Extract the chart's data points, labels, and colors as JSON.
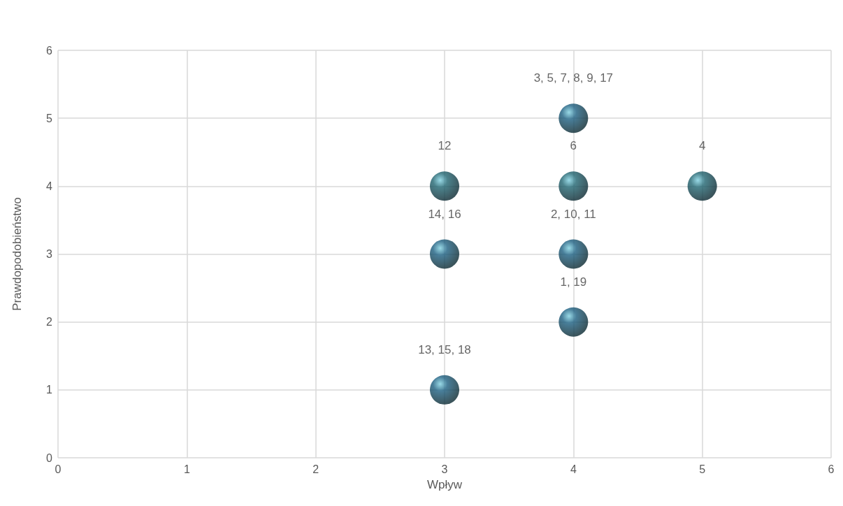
{
  "chart_data": {
    "type": "scatter",
    "xlabel": "Wpływ",
    "ylabel": "Prawdopodobieństwo",
    "x": [
      4,
      5,
      4,
      4,
      3,
      3,
      4,
      3
    ],
    "values": [
      5,
      4,
      4,
      3,
      4,
      3,
      2,
      1
    ],
    "colors": [
      "#1b5e80",
      "#1f6470",
      "#1f6470",
      "#1b5e80",
      "#1f6470",
      "#1b5e80",
      "#1b5e80",
      "#1b5e80"
    ],
    "annotations": [
      {
        "text": "3, 5, 7, 8, 9, 17",
        "x": 4,
        "y": 5
      },
      {
        "text": "4",
        "x": 5,
        "y": 4
      },
      {
        "text": "6",
        "x": 4,
        "y": 4
      },
      {
        "text": "2, 10, 11",
        "x": 4,
        "y": 3
      },
      {
        "text": "12",
        "x": 3,
        "y": 4
      },
      {
        "text": "14, 16",
        "x": 3,
        "y": 3
      },
      {
        "text": "1, 19",
        "x": 4,
        "y": 2
      },
      {
        "text": "13, 15, 18",
        "x": 3,
        "y": 1
      }
    ],
    "marker": "circle",
    "xlim": [
      0,
      6
    ],
    "xticks": [
      0,
      1,
      2,
      3,
      4,
      5,
      6
    ],
    "ylim": [
      0,
      6
    ],
    "yticks": [
      0,
      1,
      2,
      3,
      4,
      5,
      6
    ],
    "grid": true
  }
}
